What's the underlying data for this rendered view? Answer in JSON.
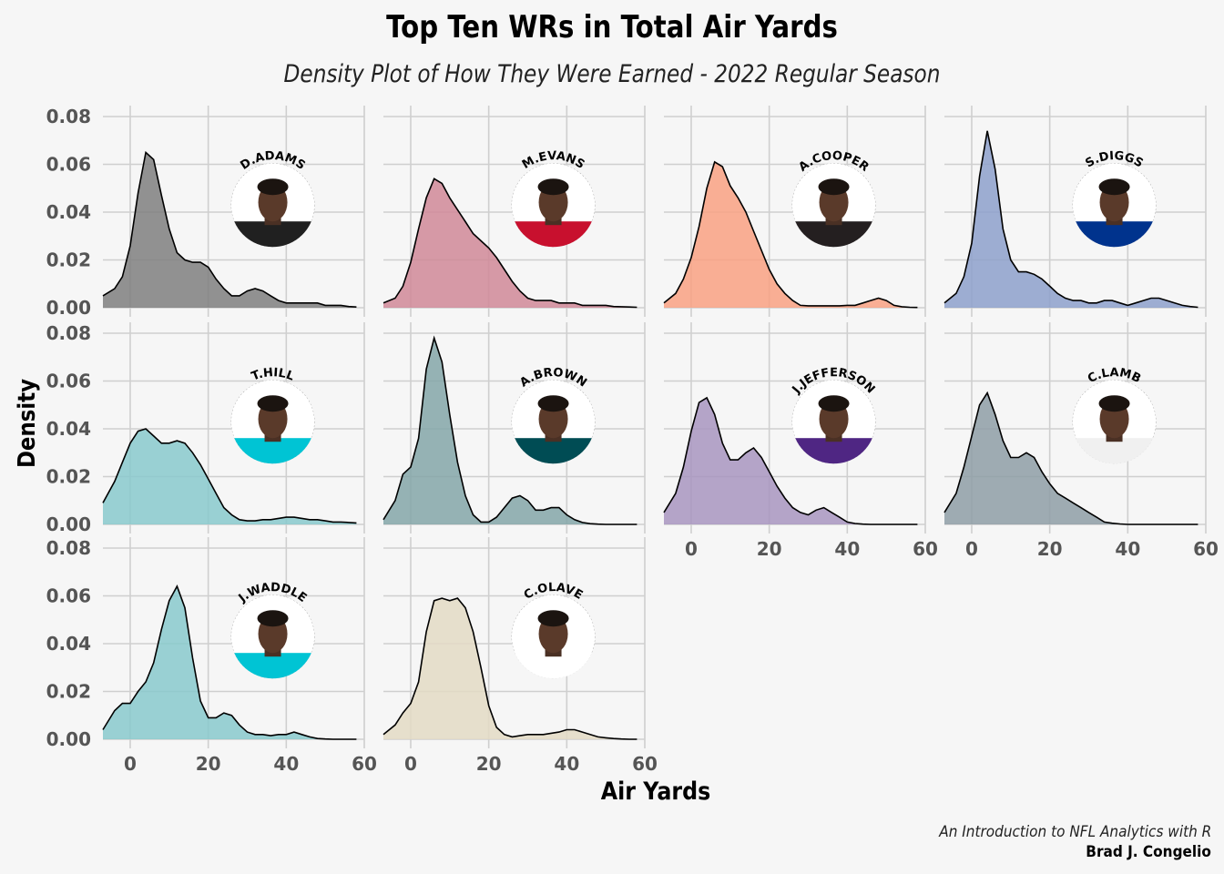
{
  "title": "Top Ten WRs in Total Air Yards",
  "subtitle": "Density Plot of How They Were Earned - 2022 Regular Season",
  "caption_line1": "An Introduction to NFL Analytics with R",
  "caption_line2": "Brad J. Congelio",
  "chart_data": {
    "type": "area",
    "subtype": "faceted density plot",
    "xlabel": "Air Yards",
    "ylabel": "Density",
    "xlim": [
      -7,
      60
    ],
    "ylim": [
      0,
      0.08
    ],
    "x_ticks": [
      0,
      20,
      40,
      60
    ],
    "x_tick_labels": [
      "0",
      "20",
      "40",
      "60"
    ],
    "y_ticks": [
      0,
      0.02,
      0.04,
      0.06,
      0.08
    ],
    "y_tick_labels": [
      "0.00",
      "0.02",
      "0.04",
      "0.06",
      "0.08"
    ],
    "grid": true,
    "legend": "none",
    "panels": [
      {
        "player": "D.ADAMS",
        "color": "#7f7f7f",
        "jersey": "#202020",
        "x": [
          -7,
          -4,
          -2,
          0,
          2,
          4,
          6,
          8,
          10,
          12,
          14,
          16,
          18,
          20,
          22,
          24,
          26,
          28,
          30,
          32,
          34,
          36,
          38,
          40,
          42,
          44,
          46,
          48,
          50,
          52,
          54,
          56,
          58
        ],
        "y": [
          0.005,
          0.008,
          0.013,
          0.026,
          0.048,
          0.065,
          0.062,
          0.047,
          0.033,
          0.023,
          0.02,
          0.019,
          0.019,
          0.017,
          0.012,
          0.008,
          0.005,
          0.005,
          0.007,
          0.008,
          0.007,
          0.005,
          0.003,
          0.002,
          0.002,
          0.002,
          0.002,
          0.002,
          0.001,
          0.001,
          0.001,
          0.0005,
          0.0003
        ]
      },
      {
        "player": "M.EVANS",
        "color": "#d08898",
        "jersey": "#c8102e",
        "x": [
          -7,
          -4,
          -2,
          0,
          2,
          4,
          6,
          8,
          10,
          12,
          14,
          16,
          18,
          20,
          22,
          24,
          26,
          28,
          30,
          32,
          34,
          36,
          38,
          40,
          42,
          44,
          46,
          48,
          50,
          52,
          54,
          56,
          58
        ],
        "y": [
          0.002,
          0.004,
          0.009,
          0.019,
          0.033,
          0.046,
          0.054,
          0.052,
          0.046,
          0.041,
          0.036,
          0.031,
          0.028,
          0.025,
          0.021,
          0.016,
          0.011,
          0.007,
          0.004,
          0.003,
          0.003,
          0.003,
          0.002,
          0.002,
          0.002,
          0.001,
          0.001,
          0.001,
          0.001,
          0.0005,
          0.0004,
          0.0003,
          0.0002
        ]
      },
      {
        "player": "A.COOPER",
        "color": "#f9a182",
        "jersey": "#241f20",
        "x": [
          -7,
          -4,
          -2,
          0,
          2,
          4,
          6,
          8,
          10,
          12,
          14,
          16,
          18,
          20,
          22,
          24,
          26,
          28,
          30,
          32,
          34,
          36,
          38,
          40,
          42,
          44,
          46,
          48,
          50,
          52,
          54,
          56,
          58
        ],
        "y": [
          0.002,
          0.006,
          0.012,
          0.021,
          0.034,
          0.05,
          0.061,
          0.059,
          0.051,
          0.046,
          0.04,
          0.032,
          0.024,
          0.016,
          0.01,
          0.006,
          0.003,
          0.001,
          0.0008,
          0.0008,
          0.0008,
          0.0008,
          0.0008,
          0.001,
          0.001,
          0.002,
          0.003,
          0.004,
          0.003,
          0.001,
          0.0004,
          0.0002,
          0.0001
        ]
      },
      {
        "player": "S.DIGGS",
        "color": "#8da0cb",
        "jersey": "#00338d",
        "x": [
          -7,
          -4,
          -2,
          0,
          2,
          4,
          6,
          8,
          10,
          12,
          14,
          16,
          18,
          20,
          22,
          24,
          26,
          28,
          30,
          32,
          34,
          36,
          38,
          40,
          42,
          44,
          46,
          48,
          50,
          52,
          54,
          56,
          58
        ],
        "y": [
          0.002,
          0.006,
          0.013,
          0.027,
          0.055,
          0.074,
          0.058,
          0.033,
          0.02,
          0.015,
          0.015,
          0.014,
          0.012,
          0.009,
          0.006,
          0.004,
          0.003,
          0.003,
          0.002,
          0.002,
          0.003,
          0.003,
          0.002,
          0.001,
          0.002,
          0.003,
          0.004,
          0.004,
          0.003,
          0.002,
          0.001,
          0.0005,
          0.0002
        ]
      },
      {
        "player": "T.HILL",
        "color": "#88c9cc",
        "jersey": "#00c4d4",
        "x": [
          -7,
          -4,
          -2,
          0,
          2,
          4,
          6,
          8,
          10,
          12,
          14,
          16,
          18,
          20,
          22,
          24,
          26,
          28,
          30,
          32,
          34,
          36,
          38,
          40,
          42,
          44,
          46,
          48,
          50,
          52,
          54,
          56,
          58
        ],
        "y": [
          0.009,
          0.018,
          0.026,
          0.034,
          0.039,
          0.04,
          0.037,
          0.034,
          0.034,
          0.035,
          0.034,
          0.03,
          0.025,
          0.019,
          0.013,
          0.007,
          0.004,
          0.002,
          0.0015,
          0.0015,
          0.002,
          0.002,
          0.0025,
          0.003,
          0.003,
          0.0025,
          0.002,
          0.002,
          0.0015,
          0.001,
          0.001,
          0.0008,
          0.0006
        ]
      },
      {
        "player": "A.BROWN",
        "color": "#84a6a8",
        "jersey": "#004c54",
        "x": [
          -7,
          -4,
          -2,
          0,
          2,
          4,
          6,
          8,
          10,
          12,
          14,
          16,
          18,
          20,
          22,
          24,
          26,
          28,
          30,
          32,
          34,
          36,
          38,
          40,
          42,
          44,
          46,
          48,
          50,
          52,
          54,
          56,
          58
        ],
        "y": [
          0.002,
          0.01,
          0.021,
          0.024,
          0.036,
          0.065,
          0.078,
          0.068,
          0.046,
          0.026,
          0.012,
          0.004,
          0.001,
          0.001,
          0.003,
          0.007,
          0.011,
          0.012,
          0.01,
          0.006,
          0.006,
          0.007,
          0.007,
          0.004,
          0.002,
          0.0008,
          0.0003,
          0.0001,
          0,
          0,
          0,
          0,
          0
        ]
      },
      {
        "player": "J.JEFFERSON",
        "color": "#a895c0",
        "jersey": "#4f2683",
        "x": [
          -7,
          -4,
          -2,
          0,
          2,
          4,
          6,
          8,
          10,
          12,
          14,
          16,
          18,
          20,
          22,
          24,
          26,
          28,
          30,
          32,
          34,
          36,
          38,
          40,
          42,
          44,
          46,
          48,
          50,
          52,
          54,
          56,
          58
        ],
        "y": [
          0.005,
          0.013,
          0.024,
          0.039,
          0.051,
          0.053,
          0.046,
          0.034,
          0.027,
          0.027,
          0.03,
          0.032,
          0.028,
          0.022,
          0.016,
          0.011,
          0.007,
          0.005,
          0.004,
          0.006,
          0.007,
          0.005,
          0.003,
          0.001,
          0.0004,
          0.0001,
          0,
          0,
          0,
          0,
          0,
          0,
          0
        ]
      },
      {
        "player": "C.LAMB",
        "color": "#8e9ea6",
        "jersey": "#f0f0f0",
        "x": [
          -7,
          -4,
          -2,
          0,
          2,
          4,
          6,
          8,
          10,
          12,
          14,
          16,
          18,
          20,
          22,
          24,
          26,
          28,
          30,
          32,
          34,
          36,
          38,
          40,
          42,
          44,
          46,
          48,
          50,
          52,
          54,
          56,
          58
        ],
        "y": [
          0.005,
          0.013,
          0.024,
          0.037,
          0.05,
          0.055,
          0.046,
          0.035,
          0.028,
          0.028,
          0.03,
          0.028,
          0.022,
          0.017,
          0.013,
          0.011,
          0.009,
          0.007,
          0.005,
          0.003,
          0.001,
          0.0005,
          0.0002,
          0,
          0,
          0,
          0,
          0,
          0,
          0,
          0,
          0,
          0
        ]
      },
      {
        "player": "J.WADDLE",
        "color": "#88c9cc",
        "jersey": "#00c4d4",
        "x": [
          -7,
          -4,
          -2,
          0,
          2,
          4,
          6,
          8,
          10,
          12,
          14,
          16,
          18,
          20,
          22,
          24,
          26,
          28,
          30,
          32,
          34,
          36,
          38,
          40,
          42,
          44,
          46,
          48,
          50,
          52,
          54,
          56,
          58
        ],
        "y": [
          0.004,
          0.012,
          0.015,
          0.015,
          0.02,
          0.024,
          0.032,
          0.046,
          0.058,
          0.064,
          0.055,
          0.034,
          0.016,
          0.009,
          0.009,
          0.011,
          0.01,
          0.006,
          0.003,
          0.002,
          0.002,
          0.0015,
          0.002,
          0.002,
          0.003,
          0.002,
          0.001,
          0.0003,
          0.0001,
          0,
          0,
          0,
          0
        ]
      },
      {
        "player": "C.OLAVE",
        "color": "#e3dac4",
        "jersey": "#ffffff",
        "x": [
          -7,
          -4,
          -2,
          0,
          2,
          4,
          6,
          8,
          10,
          12,
          14,
          16,
          18,
          20,
          22,
          24,
          26,
          28,
          30,
          32,
          34,
          36,
          38,
          40,
          42,
          44,
          46,
          48,
          50,
          52,
          54,
          56,
          58
        ],
        "y": [
          0.002,
          0.006,
          0.011,
          0.015,
          0.024,
          0.045,
          0.058,
          0.059,
          0.058,
          0.059,
          0.055,
          0.045,
          0.03,
          0.014,
          0.005,
          0.002,
          0.001,
          0.0015,
          0.002,
          0.002,
          0.002,
          0.0025,
          0.003,
          0.004,
          0.004,
          0.003,
          0.002,
          0.001,
          0.0006,
          0.0003,
          0.0001,
          0,
          0
        ]
      }
    ]
  }
}
